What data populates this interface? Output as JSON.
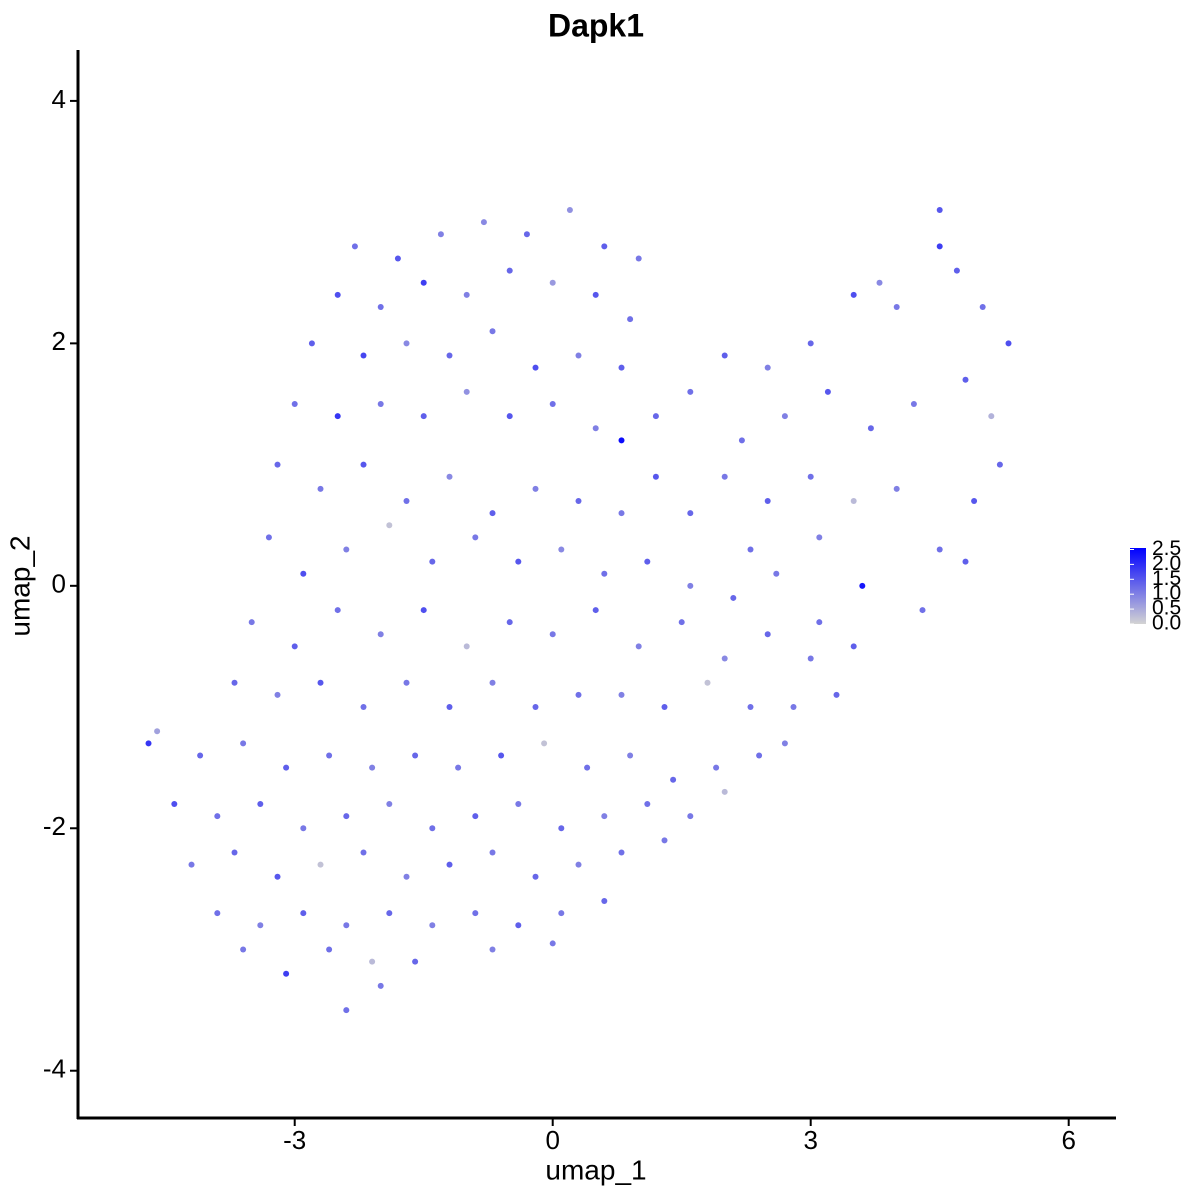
{
  "chart_data": {
    "type": "scatter",
    "title": "Dapk1",
    "xlabel": "umap_1",
    "ylabel": "umap_2",
    "xlim": [
      -5.52,
      6.55
    ],
    "ylim": [
      -4.39,
      4.42
    ],
    "xticks": [
      -3,
      0,
      3,
      6
    ],
    "yticks": [
      -4,
      -2,
      0,
      2,
      4
    ],
    "color_low": "#d3d3d3",
    "color_high": "#0000ff",
    "colorlim": [
      0,
      2.55
    ],
    "colorticks": [
      {
        "value": 0,
        "label": "0.0"
      },
      0.5,
      {
        "value": 1,
        "label": "1.0"
      },
      1.5,
      {
        "value": 2,
        "label": "2.0"
      },
      2.5
    ],
    "x": [
      -2.3,
      -1.8,
      -1.3,
      -0.8,
      -0.3,
      0.2,
      0.6,
      1.0,
      -2.5,
      -2.0,
      -1.5,
      -1.0,
      -0.5,
      0.0,
      0.5,
      0.9,
      -2.8,
      -2.2,
      -1.7,
      -1.2,
      -0.7,
      -0.2,
      0.3,
      0.8,
      -3.0,
      -2.5,
      -2.0,
      -1.5,
      -1.0,
      -0.5,
      0.0,
      0.5,
      0.8,
      1.2,
      1.6,
      2.0,
      2.5,
      3.0,
      3.5,
      4.0,
      4.5,
      4.7,
      5.0,
      5.3,
      4.5,
      3.8,
      2.2,
      2.7,
      3.2,
      3.7,
      4.2,
      4.8,
      5.1,
      5.2,
      4.9,
      4.5,
      4.0,
      3.5,
      3.0,
      2.5,
      2.0,
      1.6,
      3.6,
      4.3,
      4.8,
      3.1,
      2.3,
      -3.2,
      -2.7,
      -2.2,
      -1.7,
      -1.2,
      -0.7,
      -0.2,
      0.3,
      0.8,
      1.2,
      -3.3,
      -2.9,
      -2.4,
      -1.9,
      -1.4,
      -0.9,
      -0.4,
      0.1,
      0.6,
      1.1,
      1.6,
      2.1,
      2.6,
      3.1,
      -3.5,
      -3.0,
      -2.5,
      -2.0,
      -1.5,
      -1.0,
      -0.5,
      0.0,
      0.5,
      1.0,
      1.5,
      2.0,
      2.5,
      3.0,
      3.5,
      -3.7,
      -3.2,
      -2.7,
      -2.2,
      -1.7,
      -1.2,
      -0.7,
      -0.2,
      0.3,
      0.8,
      1.3,
      1.8,
      2.3,
      2.8,
      3.3,
      -4.7,
      -4.6,
      -4.1,
      -3.6,
      -3.1,
      -2.6,
      -2.1,
      -1.6,
      -1.1,
      -0.6,
      -0.1,
      0.4,
      0.9,
      1.4,
      1.9,
      2.4,
      2.7,
      -4.4,
      -3.9,
      -3.4,
      -2.9,
      -2.4,
      -1.9,
      -1.4,
      -0.9,
      -0.4,
      0.1,
      0.6,
      1.1,
      1.6,
      2.0,
      -4.2,
      -3.7,
      -3.2,
      -2.7,
      -2.2,
      -1.7,
      -1.2,
      -0.7,
      -0.2,
      0.3,
      0.8,
      1.3,
      -3.9,
      -3.4,
      -2.9,
      -2.4,
      -1.9,
      -1.4,
      -0.9,
      -0.4,
      0.1,
      0.6,
      -3.6,
      -3.1,
      -2.6,
      -2.1,
      -1.6,
      -0.7,
      0.0,
      -2.4,
      -2.0
    ],
    "values": [
      2.8,
      2.7,
      2.9,
      3.0,
      2.9,
      3.1,
      2.8,
      2.7,
      2.4,
      2.3,
      2.5,
      2.4,
      2.6,
      2.5,
      2.4,
      2.2,
      2.0,
      1.9,
      2.0,
      1.9,
      2.1,
      1.8,
      1.9,
      1.8,
      1.5,
      1.4,
      1.5,
      1.4,
      1.6,
      1.4,
      1.5,
      1.3,
      1.2,
      1.4,
      1.6,
      1.9,
      1.8,
      2.0,
      2.4,
      2.3,
      2.8,
      2.6,
      2.3,
      2.0,
      3.1,
      2.5,
      1.2,
      1.4,
      1.6,
      1.3,
      1.5,
      1.7,
      1.4,
      1.0,
      0.7,
      0.3,
      0.8,
      0.7,
      0.9,
      0.7,
      0.9,
      0.6,
      0.0,
      -0.2,
      0.2,
      0.4,
      0.3,
      1.0,
      0.8,
      1.0,
      0.7,
      0.9,
      0.6,
      0.8,
      0.7,
      0.6,
      0.9,
      0.4,
      0.1,
      0.3,
      0.5,
      0.2,
      0.4,
      0.2,
      0.3,
      0.1,
      0.2,
      0.0,
      -0.1,
      0.1,
      -0.3,
      -0.3,
      -0.5,
      -0.2,
      -0.4,
      -0.2,
      -0.5,
      -0.3,
      -0.4,
      -0.2,
      -0.5,
      -0.3,
      -0.6,
      -0.4,
      -0.6,
      -0.5,
      -0.8,
      -0.9,
      -0.8,
      -1.0,
      -0.8,
      -1.0,
      -0.8,
      -1.0,
      -0.9,
      -0.9,
      -1.0,
      -0.8,
      -1.0,
      -1.0,
      -0.9,
      -1.3,
      -1.2,
      -1.4,
      -1.3,
      -1.5,
      -1.4,
      -1.5,
      -1.4,
      -1.5,
      -1.4,
      -1.3,
      -1.5,
      -1.4,
      -1.6,
      -1.5,
      -1.4,
      -1.3,
      -1.8,
      -1.9,
      -1.8,
      -2.0,
      -1.9,
      -1.8,
      -2.0,
      -1.9,
      -1.8,
      -2.0,
      -1.9,
      -1.8,
      -1.9,
      -1.7,
      -2.3,
      -2.2,
      -2.4,
      -2.3,
      -2.2,
      -2.4,
      -2.3,
      -2.2,
      -2.4,
      -2.3,
      -2.2,
      -2.1,
      -2.7,
      -2.8,
      -2.7,
      -2.8,
      -2.7,
      -2.8,
      -2.7,
      -2.8,
      -2.7,
      -2.6,
      -3.0,
      -3.2,
      -3.0,
      -3.1,
      -3.1,
      -3.0,
      -2.95,
      -3.5,
      -3.3
    ],
    "expression": [
      1.2,
      1.5,
      1.0,
      0.9,
      1.3,
      0.8,
      1.4,
      1.1,
      1.6,
      1.2,
      1.8,
      1.0,
      1.3,
      0.7,
      1.5,
      1.2,
      1.4,
      1.7,
      0.9,
      1.3,
      1.1,
      1.6,
      1.0,
      1.4,
      1.2,
      1.9,
      1.1,
      1.4,
      0.8,
      1.5,
      1.2,
      1.0,
      2.4,
      1.3,
      1.2,
      1.4,
      1.0,
      1.3,
      1.6,
      1.1,
      1.8,
      1.4,
      1.2,
      1.6,
      1.5,
      0.9,
      1.2,
      1.0,
      1.5,
      1.3,
      1.1,
      1.4,
      0.4,
      1.3,
      1.5,
      1.2,
      1.0,
      0.3,
      1.2,
      1.4,
      1.1,
      1.3,
      2.3,
      1.2,
      1.4,
      1.0,
      1.2,
      1.3,
      1.1,
      1.5,
      1.2,
      0.9,
      1.4,
      1.0,
      1.3,
      1.1,
      1.5,
      1.2,
      1.6,
      1.0,
      0.2,
      1.3,
      1.1,
      1.5,
      0.9,
      1.2,
      1.4,
      1.0,
      1.3,
      1.1,
      1.2,
      1.1,
      1.4,
      1.2,
      1.0,
      1.6,
      0.3,
      1.3,
      1.1,
      1.4,
      1.0,
      1.2,
      0.9,
      1.3,
      1.1,
      1.4,
      1.3,
      1.0,
      1.5,
      1.2,
      1.1,
      1.4,
      1.0,
      1.3,
      1.2,
      1.0,
      1.4,
      0.2,
      1.2,
      1.1,
      1.3,
      1.9,
      0.6,
      1.3,
      1.1,
      1.4,
      1.2,
      1.0,
      1.3,
      1.1,
      1.5,
      0.2,
      1.2,
      1.0,
      1.3,
      1.1,
      1.2,
      1.0,
      1.6,
      1.2,
      1.4,
      1.1,
      1.3,
      1.0,
      1.2,
      1.4,
      1.1,
      1.3,
      1.0,
      1.2,
      1.1,
      0.3,
      1.1,
      1.3,
      1.5,
      0.2,
      1.2,
      1.0,
      1.4,
      1.1,
      1.3,
      1.0,
      1.2,
      1.1,
      1.2,
      1.0,
      1.4,
      1.1,
      1.3,
      1.0,
      1.2,
      1.4,
      1.1,
      1.3,
      1.1,
      1.8,
      1.2,
      0.3,
      1.3,
      1.0,
      1.1,
      1.2,
      1.1
    ]
  }
}
